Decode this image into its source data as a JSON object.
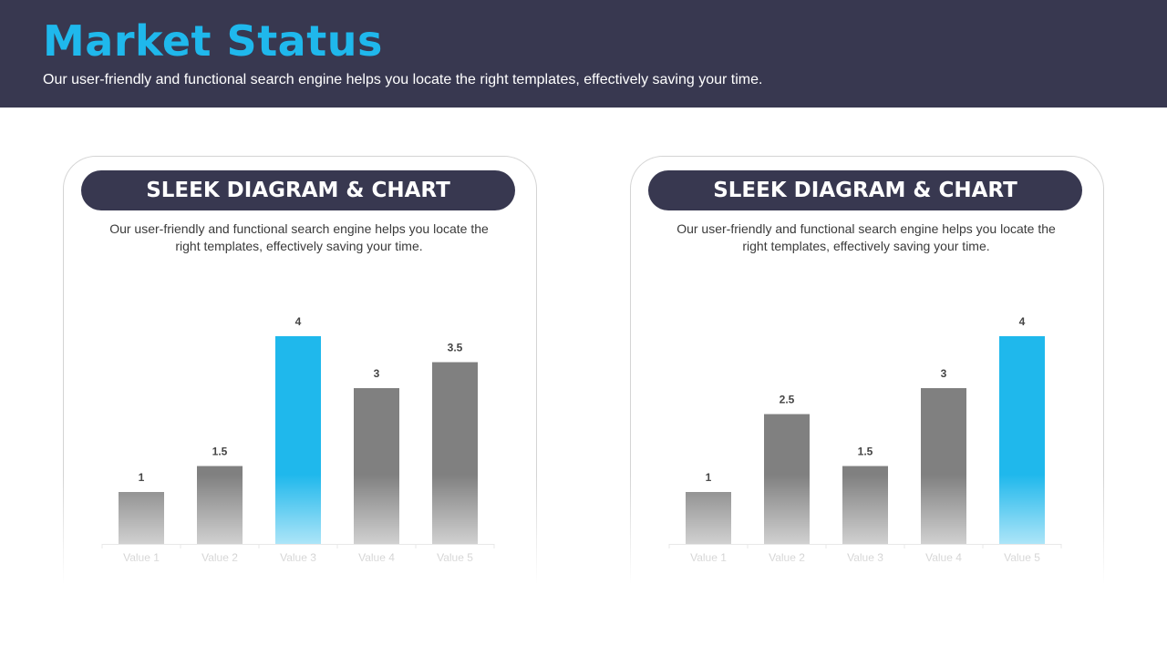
{
  "header": {
    "title": "Market Status",
    "subtitle": "Our user-friendly and functional search engine helps you locate the right templates, effectively saving your time."
  },
  "colors": {
    "header_bg": "#383850",
    "accent": "#1fb8ec",
    "bar": "#808080",
    "highlight": "#1fb8ec"
  },
  "cards": [
    {
      "heading": "SLEEK DIAGRAM & CHART",
      "description": "Our user-friendly and functional search engine helps you locate the right templates, effectively saving your time."
    },
    {
      "heading": "SLEEK DIAGRAM & CHART",
      "description": "Our user-friendly and functional search engine helps you locate the right templates, effectively saving your time."
    }
  ],
  "chart_data": [
    {
      "type": "bar",
      "categories": [
        "Value 1",
        "Value 2",
        "Value 3",
        "Value 4",
        "Value 5"
      ],
      "values": [
        1,
        1.5,
        4,
        3,
        3.5
      ],
      "data_labels": [
        "1",
        "1.5",
        "4",
        "3",
        "3.5"
      ],
      "highlight_index": 2,
      "ylim": [
        0,
        4
      ],
      "grid": false
    },
    {
      "type": "bar",
      "categories": [
        "Value 1",
        "Value 2",
        "Value 3",
        "Value 4",
        "Value 5"
      ],
      "values": [
        1,
        2.5,
        1.5,
        3,
        4
      ],
      "data_labels": [
        "1",
        "2.5",
        "1.5",
        "3",
        "4"
      ],
      "highlight_index": 4,
      "ylim": [
        0,
        4
      ],
      "grid": false
    }
  ]
}
